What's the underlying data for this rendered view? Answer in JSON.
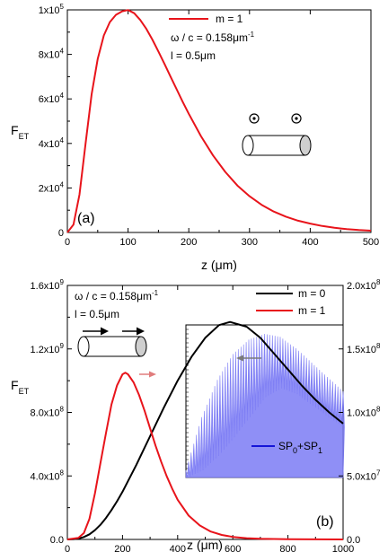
{
  "chart_data": [
    {
      "type": "line",
      "panel_label": "(a)",
      "xlabel": "z (μm)",
      "ylabel": "F",
      "ylabel_sub": "ET",
      "xlim": [
        0,
        500
      ],
      "ylim": [
        0,
        100000
      ],
      "x_ticks": [
        "0",
        "100",
        "200",
        "300",
        "400",
        "500"
      ],
      "y_ticks": [
        {
          "v": 0,
          "m": "0",
          "e": ""
        },
        {
          "v": 20000,
          "m": "2x10",
          "e": "4"
        },
        {
          "v": 40000,
          "m": "4x10",
          "e": "4"
        },
        {
          "v": 60000,
          "m": "6x10",
          "e": "4"
        },
        {
          "v": 80000,
          "m": "8x10",
          "e": "4"
        },
        {
          "v": 100000,
          "m": "1x10",
          "e": "5"
        }
      ],
      "annotations": {
        "freq_main": "ω / c = 0.158μm",
        "freq_sup": "-1",
        "length": "l = 0.5μm"
      },
      "legend_position": "top-center",
      "series": [
        {
          "name": "m = 1",
          "color": "#e8141b",
          "x": [
            0,
            10,
            20,
            30,
            40,
            50,
            60,
            70,
            80,
            90,
            100,
            110,
            120,
            130,
            140,
            150,
            160,
            170,
            180,
            190,
            200,
            220,
            240,
            260,
            280,
            300,
            320,
            340,
            360,
            380,
            400,
            420,
            440,
            460,
            480,
            500
          ],
          "y": [
            0,
            3500,
            17000,
            40000,
            62000,
            78000,
            88500,
            94500,
            97800,
            99300,
            99900,
            98500,
            95500,
            91500,
            86700,
            81300,
            75700,
            70000,
            64300,
            58700,
            53300,
            43300,
            34600,
            27200,
            21100,
            16300,
            12400,
            9400,
            7100,
            5300,
            4000,
            2900,
            2100,
            1500,
            1100,
            800
          ]
        }
      ]
    },
    {
      "type": "line",
      "panel_label": "(b)",
      "xlabel": "z (μm)",
      "ylabel": "F",
      "ylabel_sub": "ET",
      "xlim": [
        0,
        1000
      ],
      "ylim": [
        0,
        1600000000
      ],
      "ylim_right": [
        0,
        200000000
      ],
      "x_ticks": [
        "0",
        "200",
        "400",
        "600",
        "800",
        "1000"
      ],
      "y_ticks": [
        {
          "v": 0,
          "m": "0.0",
          "e": ""
        },
        {
          "v": 400000000,
          "m": "4.0x10",
          "e": "8"
        },
        {
          "v": 800000000,
          "m": "8.0x10",
          "e": "8"
        },
        {
          "v": 1200000000,
          "m": "1.2x10",
          "e": "9"
        },
        {
          "v": 1600000000,
          "m": "1.6x10",
          "e": "9"
        }
      ],
      "y_ticks_right": [
        {
          "v": 0,
          "m": "0.0",
          "e": ""
        },
        {
          "v": 50000000,
          "m": "5.0x10",
          "e": "7"
        },
        {
          "v": 100000000,
          "m": "1.0x10",
          "e": "8"
        },
        {
          "v": 150000000,
          "m": "1.5x10",
          "e": "8"
        },
        {
          "v": 200000000,
          "m": "2.0x10",
          "e": "8"
        }
      ],
      "annotations": {
        "freq_main": "ω / c = 0.158μm",
        "freq_sup": "-1",
        "length": "l = 0.5μm"
      },
      "legend_position": "top-right",
      "series": [
        {
          "name": "m = 0",
          "color": "#000000",
          "axis": "left",
          "x": [
            0,
            20,
            40,
            60,
            80,
            100,
            120,
            140,
            160,
            180,
            200,
            250,
            300,
            350,
            400,
            450,
            500,
            550,
            590,
            650,
            700,
            750,
            800,
            850,
            900,
            950,
            1000
          ],
          "y": [
            0,
            1000000,
            5000000,
            15000000,
            32000000,
            58000000,
            92000000,
            135000000,
            185000000,
            240000000,
            300000000,
            470000000,
            650000000,
            830000000,
            1000000000,
            1150000000,
            1270000000,
            1350000000,
            1370000000,
            1340000000,
            1270000000,
            1170000000,
            1070000000,
            970000000,
            880000000,
            800000000,
            730000000
          ]
        },
        {
          "name": "m = 1",
          "color": "#e8141b",
          "axis": "left",
          "x": [
            0,
            40,
            60,
            80,
            100,
            120,
            140,
            160,
            180,
            200,
            210,
            220,
            240,
            260,
            280,
            300,
            320,
            340,
            360,
            380,
            400,
            440,
            480,
            520,
            560,
            600,
            650,
            700,
            800,
            900,
            1000
          ],
          "y": [
            0,
            10000000,
            40000000,
            130000000,
            290000000,
            480000000,
            670000000,
            850000000,
            970000000,
            1040000000,
            1050000000,
            1040000000,
            990000000,
            910000000,
            810000000,
            700000000,
            590000000,
            490000000,
            400000000,
            320000000,
            250000000,
            150000000,
            88000000,
            50000000,
            28000000,
            16000000,
            8000000,
            4000000,
            1000000,
            300000,
            100000
          ]
        }
      ],
      "inset": {
        "type": "area",
        "legend_label": "SP",
        "legend_sub_0": "0",
        "legend_plus": "+SP",
        "legend_sub_1": "1",
        "color": "#7b7bf4",
        "legend_color": "#1515d8",
        "x": [
          0,
          0.1,
          0.2,
          0.3,
          0.4,
          0.5,
          0.6,
          0.7,
          0.8,
          0.9,
          1.0
        ],
        "upper": [
          0.05,
          0.42,
          0.68,
          0.86,
          0.96,
          1.0,
          0.98,
          0.9,
          0.8,
          0.7,
          0.6
        ],
        "lower": [
          0.0,
          0.05,
          0.15,
          0.28,
          0.42,
          0.56,
          0.62,
          0.58,
          0.5,
          0.42,
          0.35
        ]
      }
    }
  ]
}
